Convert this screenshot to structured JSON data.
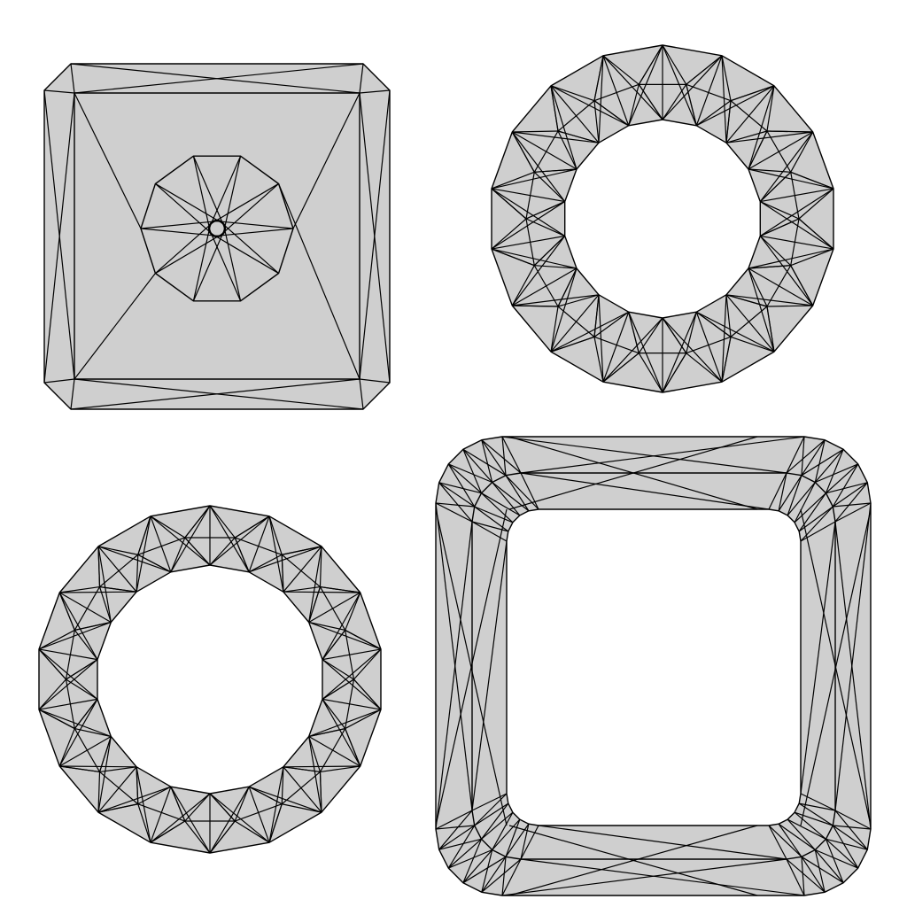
{
  "figure": {
    "background": "#ffffff",
    "mesh_fill": "#cfcfcf",
    "edge_color": "#000000",
    "panels": [
      {
        "name": "square-plate-with-hub",
        "shape": "rounded-square",
        "has_hole": false,
        "hub_sides": 10
      },
      {
        "name": "circular-ring-top",
        "shape": "ring",
        "sides": 18
      },
      {
        "name": "circular-ring-bottom",
        "shape": "ring",
        "sides": 18
      },
      {
        "name": "square-frame",
        "shape": "rounded-square-frame"
      }
    ]
  }
}
